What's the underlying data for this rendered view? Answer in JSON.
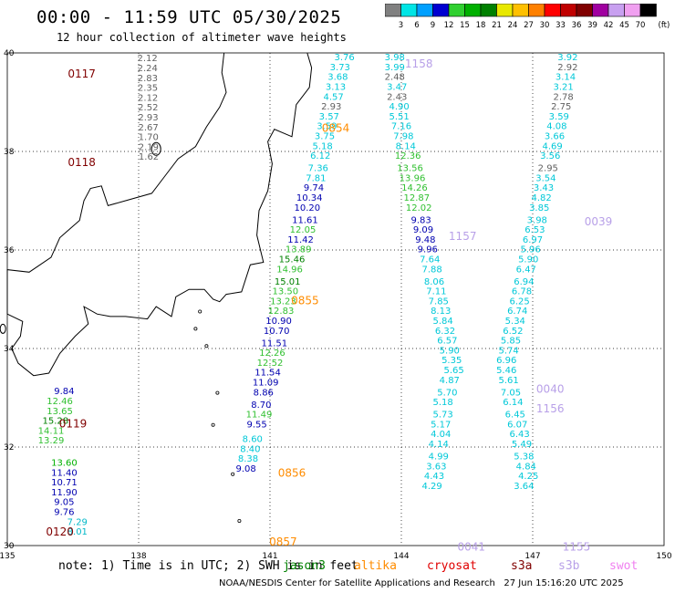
{
  "title": "00:00 - 11:59 UTC 05/30/2025",
  "subtitle": "12 hour collection of altimeter wave heights",
  "colorbar": {
    "labels": [
      "3",
      "6",
      "9",
      "12",
      "15",
      "18",
      "21",
      "24",
      "27",
      "30",
      "33",
      "36",
      "39",
      "42",
      "45",
      "70"
    ],
    "unit": "(ft)",
    "colors": [
      "#808080",
      "#00e5e5",
      "#00a0ff",
      "#0000d0",
      "#30d030",
      "#00b000",
      "#008000",
      "#e8e800",
      "#ffc000",
      "#ff8000",
      "#ff0000",
      "#c00000",
      "#800000",
      "#a000a0",
      "#c8a0f0",
      "#f0a0f0",
      "#000000"
    ]
  },
  "axes": {
    "lon_ticks": [
      "135",
      "138",
      "141",
      "144",
      "147",
      "150"
    ],
    "lat_ticks": [
      "40",
      "38",
      "36",
      "34",
      "32",
      "30"
    ]
  },
  "map": {
    "lon_range": [
      135,
      150
    ],
    "lat_range": [
      30,
      40
    ],
    "grid": true
  },
  "passes": [
    {
      "label": "0117",
      "color": "#800000",
      "lon": 136.7,
      "lat": 39.5
    },
    {
      "label": "0118",
      "color": "#800000",
      "lon": 136.7,
      "lat": 37.7
    },
    {
      "label": "0119",
      "color": "#800000",
      "lon": 136.5,
      "lat": 32.4
    },
    {
      "label": "0120",
      "color": "#800000",
      "lon": 136.2,
      "lat": 30.2
    },
    {
      "label": "0854",
      "color": "#ff8c00",
      "lon": 142.5,
      "lat": 38.4
    },
    {
      "label": "0855",
      "color": "#ff8c00",
      "lon": 141.8,
      "lat": 34.9
    },
    {
      "label": "0856",
      "color": "#ff8c00",
      "lon": 141.5,
      "lat": 31.4
    },
    {
      "label": "0857",
      "color": "#ff8c00",
      "lon": 141.3,
      "lat": 30.0
    },
    {
      "label": "1158",
      "color": "#b8a0e8",
      "lon": 144.4,
      "lat": 39.7
    },
    {
      "label": "1157",
      "color": "#b8a0e8",
      "lon": 145.4,
      "lat": 36.2
    },
    {
      "label": "1156",
      "color": "#b8a0e8",
      "lon": 147.4,
      "lat": 32.7
    },
    {
      "label": "1155",
      "color": "#b8a0e8",
      "lon": 148.0,
      "lat": 29.9
    },
    {
      "label": "0039",
      "color": "#b8a0e8",
      "lon": 148.5,
      "lat": 36.5
    },
    {
      "label": "0040",
      "color": "#b8a0e8",
      "lon": 147.4,
      "lat": 33.1
    },
    {
      "label": "0041",
      "color": "#b8a0e8",
      "lon": 145.6,
      "lat": 29.9
    }
  ],
  "tracks": [
    {
      "color": "#606060",
      "lon0": 138.2,
      "lat0": 39.83,
      "dlon": 0.003,
      "dlat": -0.2,
      "values": [
        "2.12",
        "2.24",
        "2.83",
        "2.35",
        "2.12",
        "2.52",
        "2.93",
        "2.67",
        "1.70",
        "2.19",
        "1.62"
      ]
    },
    {
      "color": "#00b000",
      "lon0": 136.3,
      "lat0": 31.62,
      "dlon": 0.0,
      "dlat": -0.2,
      "values": [
        "13.60"
      ]
    },
    {
      "color": "#0000b0",
      "lon0": 136.3,
      "lat0": 31.42,
      "dlon": 0.0,
      "dlat": -0.2,
      "values": [
        "11.40",
        "10.71",
        "11.90",
        "9.05",
        "9.76"
      ]
    },
    {
      "color": "#00b8c8",
      "lon0": 136.6,
      "lat0": 30.42,
      "dlon": 0.0,
      "dlat": -0.2,
      "values": [
        "7.29",
        "8.01"
      ]
    }
  ],
  "values": [
    {
      "t": "9.84",
      "c": "#0000b0",
      "lon": 136.3,
      "lat": 33.07
    },
    {
      "t": "12.46",
      "c": "#30c030",
      "lon": 136.2,
      "lat": 32.87
    },
    {
      "t": "13.65",
      "c": "#30c030",
      "lon": 136.2,
      "lat": 32.67
    },
    {
      "t": "15.28",
      "c": "#008000",
      "lon": 136.1,
      "lat": 32.47
    },
    {
      "t": "14.11",
      "c": "#30c030",
      "lon": 136.0,
      "lat": 32.27
    },
    {
      "t": "13.29",
      "c": "#30c030",
      "lon": 136.0,
      "lat": 32.07
    },
    {
      "t": "3.76",
      "c": "#00c8d8",
      "lon": 142.7,
      "lat": 39.85
    },
    {
      "t": "3.73",
      "c": "#00c8d8",
      "lon": 142.6,
      "lat": 39.65
    },
    {
      "t": "3.68",
      "c": "#00c8d8",
      "lon": 142.55,
      "lat": 39.45
    },
    {
      "t": "3.13",
      "c": "#00c8d8",
      "lon": 142.5,
      "lat": 39.25
    },
    {
      "t": "4.57",
      "c": "#00c8d8",
      "lon": 142.45,
      "lat": 39.05
    },
    {
      "t": "2.93",
      "c": "#606060",
      "lon": 142.4,
      "lat": 38.85
    },
    {
      "t": "3.57",
      "c": "#00c8d8",
      "lon": 142.35,
      "lat": 38.65
    },
    {
      "t": "3.59",
      "c": "#00c8d8",
      "lon": 142.3,
      "lat": 38.45
    },
    {
      "t": "3.75",
      "c": "#00c8d8",
      "lon": 142.25,
      "lat": 38.25
    },
    {
      "t": "5.18",
      "c": "#00c8d8",
      "lon": 142.2,
      "lat": 38.05
    },
    {
      "t": "6.12",
      "c": "#00c8d8",
      "lon": 142.15,
      "lat": 37.85
    },
    {
      "t": "7.36",
      "c": "#00c8d8",
      "lon": 142.1,
      "lat": 37.6
    },
    {
      "t": "7.81",
      "c": "#00c8d8",
      "lon": 142.05,
      "lat": 37.4
    },
    {
      "t": "9.74",
      "c": "#0000b0",
      "lon": 142.0,
      "lat": 37.2
    },
    {
      "t": "10.34",
      "c": "#0000b0",
      "lon": 141.9,
      "lat": 37.0
    },
    {
      "t": "10.20",
      "c": "#0000b0",
      "lon": 141.85,
      "lat": 36.8
    },
    {
      "t": "11.61",
      "c": "#0000b0",
      "lon": 141.8,
      "lat": 36.55
    },
    {
      "t": "12.05",
      "c": "#30c030",
      "lon": 141.75,
      "lat": 36.35
    },
    {
      "t": "11.42",
      "c": "#0000b0",
      "lon": 141.7,
      "lat": 36.15
    },
    {
      "t": "13.89",
      "c": "#30c030",
      "lon": 141.65,
      "lat": 35.95
    },
    {
      "t": "15.46",
      "c": "#008000",
      "lon": 141.5,
      "lat": 35.75
    },
    {
      "t": "14.96",
      "c": "#30c030",
      "lon": 141.45,
      "lat": 35.55
    },
    {
      "t": "15.01",
      "c": "#008000",
      "lon": 141.4,
      "lat": 35.3
    },
    {
      "t": "13.50",
      "c": "#30c030",
      "lon": 141.35,
      "lat": 35.1
    },
    {
      "t": "13.23",
      "c": "#30c030",
      "lon": 141.3,
      "lat": 34.9
    },
    {
      "t": "12.83",
      "c": "#30c030",
      "lon": 141.25,
      "lat": 34.7
    },
    {
      "t": "10.90",
      "c": "#0000b0",
      "lon": 141.2,
      "lat": 34.5
    },
    {
      "t": "10.70",
      "c": "#0000b0",
      "lon": 141.15,
      "lat": 34.3
    },
    {
      "t": "11.51",
      "c": "#0000b0",
      "lon": 141.1,
      "lat": 34.05
    },
    {
      "t": "12.26",
      "c": "#30c030",
      "lon": 141.05,
      "lat": 33.85
    },
    {
      "t": "12.52",
      "c": "#30c030",
      "lon": 141.0,
      "lat": 33.65
    },
    {
      "t": "11.54",
      "c": "#0000b0",
      "lon": 140.95,
      "lat": 33.45
    },
    {
      "t": "11.09",
      "c": "#0000b0",
      "lon": 140.9,
      "lat": 33.25
    },
    {
      "t": "8.86",
      "c": "#0000b0",
      "lon": 140.85,
      "lat": 33.05
    },
    {
      "t": "8.70",
      "c": "#0000b0",
      "lon": 140.8,
      "lat": 32.8
    },
    {
      "t": "11.49",
      "c": "#30c030",
      "lon": 140.75,
      "lat": 32.6
    },
    {
      "t": "9.55",
      "c": "#0000b0",
      "lon": 140.7,
      "lat": 32.4
    },
    {
      "t": "8.60",
      "c": "#00c8d8",
      "lon": 140.6,
      "lat": 32.1
    },
    {
      "t": "8.40",
      "c": "#00c8d8",
      "lon": 140.55,
      "lat": 31.9
    },
    {
      "t": "8.38",
      "c": "#00c8d8",
      "lon": 140.5,
      "lat": 31.7
    },
    {
      "t": "9.08",
      "c": "#0000b0",
      "lon": 140.45,
      "lat": 31.5
    },
    {
      "t": "3.98",
      "c": "#00c8d8",
      "lon": 143.85,
      "lat": 39.85
    },
    {
      "t": "3.99",
      "c": "#00c8d8",
      "lon": 143.85,
      "lat": 39.65
    },
    {
      "t": "2.48",
      "c": "#606060",
      "lon": 143.85,
      "lat": 39.45
    },
    {
      "t": "3.47",
      "c": "#00c8d8",
      "lon": 143.9,
      "lat": 39.25
    },
    {
      "t": "2.43",
      "c": "#606060",
      "lon": 143.9,
      "lat": 39.05
    },
    {
      "t": "4.90",
      "c": "#00c8d8",
      "lon": 143.95,
      "lat": 38.85
    },
    {
      "t": "5.51",
      "c": "#00c8d8",
      "lon": 143.95,
      "lat": 38.65
    },
    {
      "t": "7.16",
      "c": "#00c8d8",
      "lon": 144.0,
      "lat": 38.45
    },
    {
      "t": "7.98",
      "c": "#00c8d8",
      "lon": 144.05,
      "lat": 38.25
    },
    {
      "t": "8.14",
      "c": "#00c8d8",
      "lon": 144.1,
      "lat": 38.05
    },
    {
      "t": "12.36",
      "c": "#30c030",
      "lon": 144.15,
      "lat": 37.85
    },
    {
      "t": "13.56",
      "c": "#30c030",
      "lon": 144.2,
      "lat": 37.6
    },
    {
      "t": "13.96",
      "c": "#30c030",
      "lon": 144.25,
      "lat": 37.4
    },
    {
      "t": "14.26",
      "c": "#30c030",
      "lon": 144.3,
      "lat": 37.2
    },
    {
      "t": "12.87",
      "c": "#30c030",
      "lon": 144.35,
      "lat": 37.0
    },
    {
      "t": "12.02",
      "c": "#30c030",
      "lon": 144.4,
      "lat": 36.8
    },
    {
      "t": "9.83",
      "c": "#0000b0",
      "lon": 144.45,
      "lat": 36.55
    },
    {
      "t": "9.09",
      "c": "#0000b0",
      "lon": 144.5,
      "lat": 36.35
    },
    {
      "t": "9.48",
      "c": "#0000b0",
      "lon": 144.55,
      "lat": 36.15
    },
    {
      "t": "9.96",
      "c": "#0000b0",
      "lon": 144.6,
      "lat": 35.95
    },
    {
      "t": "7.64",
      "c": "#00c8d8",
      "lon": 144.65,
      "lat": 35.75
    },
    {
      "t": "7.88",
      "c": "#00c8d8",
      "lon": 144.7,
      "lat": 35.55
    },
    {
      "t": "8.06",
      "c": "#00c8d8",
      "lon": 144.75,
      "lat": 35.3
    },
    {
      "t": "7.11",
      "c": "#00c8d8",
      "lon": 144.8,
      "lat": 35.1
    },
    {
      "t": "7.85",
      "c": "#00c8d8",
      "lon": 144.85,
      "lat": 34.9
    },
    {
      "t": "8.13",
      "c": "#00c8d8",
      "lon": 144.9,
      "lat": 34.7
    },
    {
      "t": "5.84",
      "c": "#00c8d8",
      "lon": 144.95,
      "lat": 34.5
    },
    {
      "t": "6.32",
      "c": "#00c8d8",
      "lon": 145.0,
      "lat": 34.3
    },
    {
      "t": "6.57",
      "c": "#00c8d8",
      "lon": 145.05,
      "lat": 34.1
    },
    {
      "t": "5.90",
      "c": "#00c8d8",
      "lon": 145.1,
      "lat": 33.9
    },
    {
      "t": "5.35",
      "c": "#00c8d8",
      "lon": 145.15,
      "lat": 33.7
    },
    {
      "t": "5.65",
      "c": "#00c8d8",
      "lon": 145.2,
      "lat": 33.5
    },
    {
      "t": "4.87",
      "c": "#00c8d8",
      "lon": 145.1,
      "lat": 33.3
    },
    {
      "t": "5.70",
      "c": "#00c8d8",
      "lon": 145.05,
      "lat": 33.05
    },
    {
      "t": "5.18",
      "c": "#00c8d8",
      "lon": 144.95,
      "lat": 32.85
    },
    {
      "t": "5.73",
      "c": "#00c8d8",
      "lon": 144.95,
      "lat": 32.6
    },
    {
      "t": "5.17",
      "c": "#00c8d8",
      "lon": 144.9,
      "lat": 32.4
    },
    {
      "t": "4.04",
      "c": "#00c8d8",
      "lon": 144.9,
      "lat": 32.2
    },
    {
      "t": "4.14",
      "c": "#00c8d8",
      "lon": 144.85,
      "lat": 32.0
    },
    {
      "t": "4.99",
      "c": "#00c8d8",
      "lon": 144.85,
      "lat": 31.75
    },
    {
      "t": "3.63",
      "c": "#00c8d8",
      "lon": 144.8,
      "lat": 31.55
    },
    {
      "t": "4.43",
      "c": "#00c8d8",
      "lon": 144.75,
      "lat": 31.35
    },
    {
      "t": "4.29",
      "c": "#00c8d8",
      "lon": 144.7,
      "lat": 31.15
    },
    {
      "t": "3.92",
      "c": "#00c8d8",
      "lon": 147.8,
      "lat": 39.85
    },
    {
      "t": "2.92",
      "c": "#606060",
      "lon": 147.8,
      "lat": 39.65
    },
    {
      "t": "3.14",
      "c": "#00c8d8",
      "lon": 147.75,
      "lat": 39.45
    },
    {
      "t": "3.21",
      "c": "#00c8d8",
      "lon": 147.7,
      "lat": 39.25
    },
    {
      "t": "2.78",
      "c": "#606060",
      "lon": 147.7,
      "lat": 39.05
    },
    {
      "t": "2.75",
      "c": "#606060",
      "lon": 147.65,
      "lat": 38.85
    },
    {
      "t": "3.59",
      "c": "#00c8d8",
      "lon": 147.6,
      "lat": 38.65
    },
    {
      "t": "4.08",
      "c": "#00c8d8",
      "lon": 147.55,
      "lat": 38.45
    },
    {
      "t": "3.66",
      "c": "#00c8d8",
      "lon": 147.5,
      "lat": 38.25
    },
    {
      "t": "4.69",
      "c": "#00c8d8",
      "lon": 147.45,
      "lat": 38.05
    },
    {
      "t": "3.56",
      "c": "#00c8d8",
      "lon": 147.4,
      "lat": 37.85
    },
    {
      "t": "2.95",
      "c": "#606060",
      "lon": 147.35,
      "lat": 37.6
    },
    {
      "t": "3.54",
      "c": "#00c8d8",
      "lon": 147.3,
      "lat": 37.4
    },
    {
      "t": "3.43",
      "c": "#00c8d8",
      "lon": 147.25,
      "lat": 37.2
    },
    {
      "t": "4.82",
      "c": "#00c8d8",
      "lon": 147.2,
      "lat": 37.0
    },
    {
      "t": "3.85",
      "c": "#00c8d8",
      "lon": 147.15,
      "lat": 36.8
    },
    {
      "t": "3.98",
      "c": "#00c8d8",
      "lon": 147.1,
      "lat": 36.55
    },
    {
      "t": "6.53",
      "c": "#00c8d8",
      "lon": 147.05,
      "lat": 36.35
    },
    {
      "t": "6.97",
      "c": "#00c8d8",
      "lon": 147.0,
      "lat": 36.15
    },
    {
      "t": "5.96",
      "c": "#00c8d8",
      "lon": 146.95,
      "lat": 35.95
    },
    {
      "t": "5.90",
      "c": "#00c8d8",
      "lon": 146.9,
      "lat": 35.75
    },
    {
      "t": "6.47",
      "c": "#00c8d8",
      "lon": 146.85,
      "lat": 35.55
    },
    {
      "t": "6.94",
      "c": "#00c8d8",
      "lon": 146.8,
      "lat": 35.3
    },
    {
      "t": "6.78",
      "c": "#00c8d8",
      "lon": 146.75,
      "lat": 35.1
    },
    {
      "t": "6.25",
      "c": "#00c8d8",
      "lon": 146.7,
      "lat": 34.9
    },
    {
      "t": "6.74",
      "c": "#00c8d8",
      "lon": 146.65,
      "lat": 34.7
    },
    {
      "t": "5.34",
      "c": "#00c8d8",
      "lon": 146.6,
      "lat": 34.5
    },
    {
      "t": "6.52",
      "c": "#00c8d8",
      "lon": 146.55,
      "lat": 34.3
    },
    {
      "t": "5.85",
      "c": "#00c8d8",
      "lon": 146.5,
      "lat": 34.1
    },
    {
      "t": "5.74",
      "c": "#00c8d8",
      "lon": 146.45,
      "lat": 33.9
    },
    {
      "t": "6.96",
      "c": "#00c8d8",
      "lon": 146.4,
      "lat": 33.7
    },
    {
      "t": "5.46",
      "c": "#00c8d8",
      "lon": 146.4,
      "lat": 33.5
    },
    {
      "t": "5.61",
      "c": "#00c8d8",
      "lon": 146.45,
      "lat": 33.3
    },
    {
      "t": "7.05",
      "c": "#00c8d8",
      "lon": 146.5,
      "lat": 33.05
    },
    {
      "t": "6.14",
      "c": "#00c8d8",
      "lon": 146.55,
      "lat": 32.85
    },
    {
      "t": "6.45",
      "c": "#00c8d8",
      "lon": 146.6,
      "lat": 32.6
    },
    {
      "t": "6.07",
      "c": "#00c8d8",
      "lon": 146.65,
      "lat": 32.4
    },
    {
      "t": "6.43",
      "c": "#00c8d8",
      "lon": 146.7,
      "lat": 32.2
    },
    {
      "t": "5.49",
      "c": "#00c8d8",
      "lon": 146.75,
      "lat": 32.0
    },
    {
      "t": "5.38",
      "c": "#00c8d8",
      "lon": 146.8,
      "lat": 31.75
    },
    {
      "t": "4.84",
      "c": "#00c8d8",
      "lon": 146.85,
      "lat": 31.55
    },
    {
      "t": "4.25",
      "c": "#00c8d8",
      "lon": 146.9,
      "lat": 31.35
    },
    {
      "t": "3.64",
      "c": "#00c8d8",
      "lon": 146.8,
      "lat": 31.15
    }
  ],
  "note": "note: 1) Time is in UTC; 2) SWH is in feet",
  "legend": [
    {
      "name": "jason3",
      "color": "#008000"
    },
    {
      "name": "altika",
      "color": "#ff8c00"
    },
    {
      "name": "cryosat",
      "color": "#e00000"
    },
    {
      "name": "s3a",
      "color": "#800000"
    },
    {
      "name": "s3b",
      "color": "#b8a0e8"
    },
    {
      "name": "swot",
      "color": "#f080f0"
    }
  ],
  "credit": "NOAA/NESDIS Center for Satellite Applications and Research   27 Jun 15:16:20 UTC 2025"
}
